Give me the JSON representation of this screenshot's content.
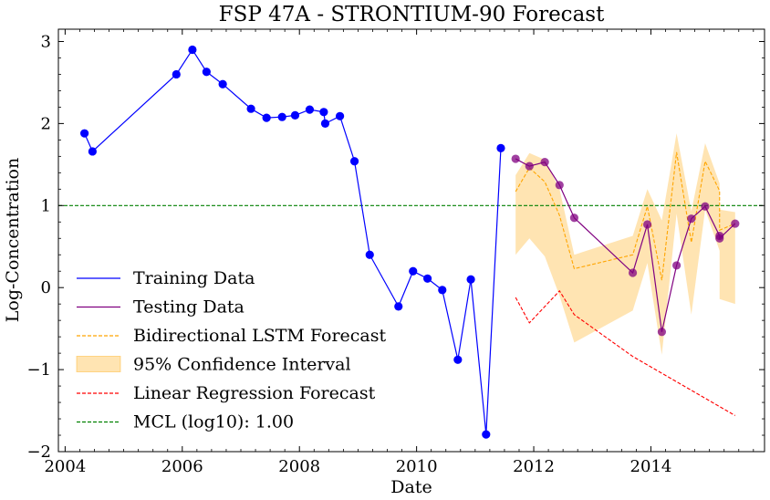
{
  "chart_data": {
    "type": "line",
    "title": "FSP 47A - STRONTIUM-90 Forecast",
    "xlabel": "Date",
    "ylabel": "Log-Concentration",
    "xlim": [
      "2003-11-20",
      "2015-12-10"
    ],
    "ylim": [
      -2.0,
      3.15
    ],
    "x_ticks": [
      {
        "date": "2004-01-01",
        "label": "2004"
      },
      {
        "date": "2006-01-01",
        "label": "2006"
      },
      {
        "date": "2008-01-01",
        "label": "2008"
      },
      {
        "date": "2010-01-01",
        "label": "2010"
      },
      {
        "date": "2012-01-01",
        "label": "2012"
      },
      {
        "date": "2014-01-01",
        "label": "2014"
      }
    ],
    "y_ticks": [
      {
        "value": -2,
        "label": "−2"
      },
      {
        "value": -1,
        "label": "−1"
      },
      {
        "value": 0,
        "label": "0"
      },
      {
        "value": 1,
        "label": "1"
      },
      {
        "value": 2,
        "label": "2"
      },
      {
        "value": 3,
        "label": "3"
      }
    ],
    "grid": false,
    "legend_position": "lower-left",
    "series": [
      {
        "name": "Training Data",
        "kind": "line-markers",
        "color": "#0000ff",
        "points": [
          {
            "x": "2004-05-01",
            "y": 1.88
          },
          {
            "x": "2004-06-20",
            "y": 1.66
          },
          {
            "x": "2005-11-25",
            "y": 2.6
          },
          {
            "x": "2006-03-05",
            "y": 2.9
          },
          {
            "x": "2006-06-01",
            "y": 2.63
          },
          {
            "x": "2006-09-10",
            "y": 2.48
          },
          {
            "x": "2007-03-05",
            "y": 2.18
          },
          {
            "x": "2007-06-10",
            "y": 2.07
          },
          {
            "x": "2007-09-15",
            "y": 2.08
          },
          {
            "x": "2007-12-05",
            "y": 2.1
          },
          {
            "x": "2008-03-05",
            "y": 2.17
          },
          {
            "x": "2008-06-01",
            "y": 2.14
          },
          {
            "x": "2008-06-10",
            "y": 2.0
          },
          {
            "x": "2008-09-10",
            "y": 2.09
          },
          {
            "x": "2008-12-10",
            "y": 1.54
          },
          {
            "x": "2009-03-15",
            "y": 0.4
          },
          {
            "x": "2009-09-10",
            "y": -0.23
          },
          {
            "x": "2009-12-10",
            "y": 0.2
          },
          {
            "x": "2010-03-10",
            "y": 0.11
          },
          {
            "x": "2010-06-10",
            "y": -0.03
          },
          {
            "x": "2010-09-15",
            "y": -0.88
          },
          {
            "x": "2010-12-05",
            "y": 0.1
          },
          {
            "x": "2011-03-10",
            "y": -1.79
          },
          {
            "x": "2011-06-10",
            "y": 1.7
          }
        ]
      },
      {
        "name": "Testing Data",
        "kind": "line-markers",
        "color": "#800080",
        "points": [
          {
            "x": "2011-09-10",
            "y": 1.57
          },
          {
            "x": "2011-12-05",
            "y": 1.48
          },
          {
            "x": "2012-03-10",
            "y": 1.53
          },
          {
            "x": "2012-06-10",
            "y": 1.25
          },
          {
            "x": "2012-09-10",
            "y": 0.85
          },
          {
            "x": "2013-09-10",
            "y": 0.18
          },
          {
            "x": "2013-12-10",
            "y": 0.77
          },
          {
            "x": "2014-03-10",
            "y": -0.54
          },
          {
            "x": "2014-06-10",
            "y": 0.27
          },
          {
            "x": "2014-09-10",
            "y": 0.84
          },
          {
            "x": "2014-12-05",
            "y": 0.99
          },
          {
            "x": "2015-03-05",
            "y": 0.63
          },
          {
            "x": "2015-03-05",
            "y": 0.6
          },
          {
            "x": "2015-06-10",
            "y": 0.78
          }
        ]
      },
      {
        "name": "Bidirectional LSTM Forecast",
        "kind": "dashed-line",
        "color": "#ffa500",
        "points": [
          {
            "x": "2011-09-10",
            "y": 1.17
          },
          {
            "x": "2011-12-05",
            "y": 1.46
          },
          {
            "x": "2012-03-10",
            "y": 1.29
          },
          {
            "x": "2012-06-10",
            "y": 0.88
          },
          {
            "x": "2012-09-10",
            "y": 0.23
          },
          {
            "x": "2013-09-10",
            "y": 0.4
          },
          {
            "x": "2013-12-10",
            "y": 0.99
          },
          {
            "x": "2014-03-10",
            "y": 0.09
          },
          {
            "x": "2014-06-10",
            "y": 1.65
          },
          {
            "x": "2014-09-10",
            "y": 0.55
          },
          {
            "x": "2014-12-05",
            "y": 1.54
          },
          {
            "x": "2015-03-05",
            "y": 1.18
          },
          {
            "x": "2015-03-05",
            "y": 0.7
          },
          {
            "x": "2015-06-10",
            "y": 0.78
          }
        ]
      },
      {
        "name": "95% Confidence Interval",
        "kind": "band",
        "color": "#ffa500",
        "opacity": 0.3,
        "points": [
          {
            "x": "2011-09-10",
            "lower": 0.4,
            "upper": 1.37
          },
          {
            "x": "2011-12-05",
            "lower": 0.6,
            "upper": 1.64
          },
          {
            "x": "2012-03-10",
            "lower": 0.38,
            "upper": 1.56
          },
          {
            "x": "2012-06-10",
            "lower": -0.1,
            "upper": 1.2
          },
          {
            "x": "2012-09-10",
            "lower": -0.67,
            "upper": 0.4
          },
          {
            "x": "2013-09-10",
            "lower": -0.28,
            "upper": 0.63
          },
          {
            "x": "2013-12-10",
            "lower": 0.3,
            "upper": 1.2
          },
          {
            "x": "2014-03-10",
            "lower": -0.82,
            "upper": 0.82
          },
          {
            "x": "2014-06-10",
            "lower": 0.9,
            "upper": 1.88
          },
          {
            "x": "2014-09-10",
            "lower": -0.33,
            "upper": 0.93
          },
          {
            "x": "2014-12-05",
            "lower": 0.95,
            "upper": 1.76
          },
          {
            "x": "2015-03-05",
            "lower": 0.45,
            "upper": 1.27
          },
          {
            "x": "2015-03-05",
            "lower": -0.14,
            "upper": 0.95
          },
          {
            "x": "2015-06-10",
            "lower": -0.2,
            "upper": 0.92
          }
        ]
      },
      {
        "name": "Linear Regression Forecast",
        "kind": "dashed-line",
        "color": "#ff0000",
        "points": [
          {
            "x": "2011-09-10",
            "y": -0.12
          },
          {
            "x": "2011-12-05",
            "y": -0.43
          },
          {
            "x": "2012-06-10",
            "y": -0.04
          },
          {
            "x": "2012-09-10",
            "y": -0.33
          },
          {
            "x": "2013-09-10",
            "y": -0.84
          },
          {
            "x": "2015-06-10",
            "y": -1.56
          }
        ]
      },
      {
        "name": "MCL (log10):  1.00",
        "kind": "hline",
        "color": "#008000",
        "y": 1.0
      }
    ]
  }
}
